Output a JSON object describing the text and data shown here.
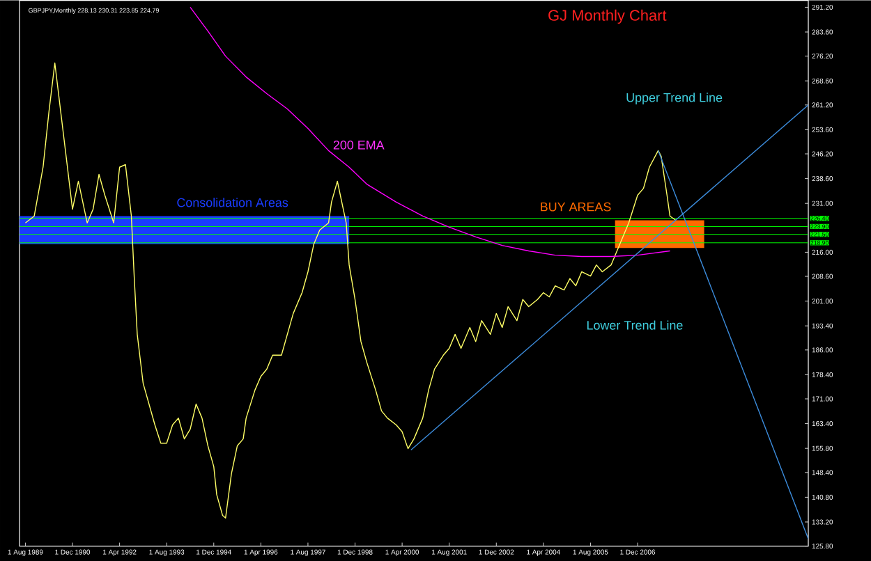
{
  "chart_data": {
    "type": "line",
    "title": "GJ Monthly Chart",
    "annotations": [
      "GBPJPY,Monthly  228.13 230.31 223.85 224.79",
      "200 EMA",
      "Upper Trend Line",
      "Lower Trend Line"
    ],
    "bands": [
      {
        "axis": "y",
        "from": 218.5,
        "to": 227.1,
        "label": "Consolidation Areas",
        "color": "#1a3cff"
      },
      {
        "axis": "y",
        "from": 217.3,
        "to": 225.8,
        "label": "BUY AREAS",
        "color": "#ff6a00"
      }
    ],
    "series": [
      {
        "color": "#ffff66",
        "x": [
          "1989-08",
          "1989-11",
          "1990-02",
          "1990-04",
          "1990-06",
          "1990-08",
          "1990-10",
          "1990-12",
          "1991-02",
          "1991-05",
          "1991-07",
          "1991-09",
          "1991-11",
          "1992-02",
          "1992-04",
          "1992-06",
          "1992-08",
          "1992-09",
          "1992-10",
          "1992-12",
          "1993-02",
          "1993-04",
          "1993-06",
          "1993-08",
          "1993-10",
          "1993-12",
          "1994-02",
          "1994-04",
          "1994-06",
          "1994-08",
          "1994-10",
          "1994-12",
          "1995-01",
          "1995-03",
          "1995-04",
          "1995-06",
          "1995-08",
          "1995-10",
          "1995-11",
          "1996-02",
          "1996-04",
          "1996-06",
          "1996-08",
          "1996-11",
          "1997-01",
          "1997-03",
          "1997-06",
          "1997-08",
          "1997-10",
          "1997-12",
          "1998-03",
          "1998-04",
          "1998-06",
          "1998-07",
          "1998-09",
          "1998-10",
          "1998-12",
          "1999-02",
          "1999-04",
          "1999-07",
          "1999-09",
          "1999-11",
          "2000-02",
          "2000-04",
          "2000-06",
          "2000-08",
          "2000-11",
          "2001-01",
          "2001-03",
          "2001-06",
          "2001-08",
          "2001-10",
          "2001-12",
          "2002-03",
          "2002-05",
          "2002-07",
          "2002-10",
          "2002-12",
          "2003-02",
          "2003-04",
          "2003-07",
          "2003-09",
          "2003-11",
          "2004-02",
          "2004-04",
          "2004-06",
          "2004-08",
          "2004-11",
          "2005-01",
          "2005-03",
          "2005-05",
          "2005-08",
          "2005-10",
          "2005-12",
          "2006-03",
          "2006-05",
          "2006-07",
          "2006-09",
          "2006-12",
          "2007-02",
          "2007-04",
          "2007-07",
          "2007-08",
          "2007-10",
          "2007-11",
          "2008-01"
        ],
        "values": [
          225.0,
          227.1,
          242.1,
          259.1,
          274.1,
          259.1,
          244.2,
          229.2,
          237.8,
          225.0,
          229.2,
          239.9,
          233.5,
          225.0,
          242.1,
          242.9,
          227.1,
          207.9,
          190.8,
          175.8,
          169.4,
          163.0,
          157.4,
          157.4,
          163.0,
          165.1,
          158.7,
          161.7,
          169.4,
          165.1,
          156.6,
          150.2,
          141.6,
          135.2,
          134.4,
          148.0,
          156.6,
          158.7,
          165.1,
          173.7,
          177.9,
          180.1,
          184.4,
          184.4,
          190.8,
          197.2,
          203.6,
          210.0,
          218.5,
          222.8,
          225.0,
          231.4,
          237.8,
          233.5,
          225.0,
          212.1,
          201.5,
          188.6,
          182.2,
          173.7,
          167.3,
          165.1,
          163.0,
          160.9,
          155.7,
          158.7,
          165.1,
          173.7,
          180.1,
          184.4,
          186.5,
          190.8,
          186.5,
          192.9,
          188.6,
          195.0,
          190.8,
          197.2,
          192.9,
          199.3,
          195.0,
          201.5,
          199.3,
          201.5,
          203.6,
          202.3,
          205.7,
          204.4,
          207.9,
          205.7,
          210.0,
          208.7,
          212.1,
          210.0,
          212.1,
          216.4,
          220.7,
          225.0,
          233.5,
          235.6,
          242.1,
          247.2,
          245.5,
          233.5,
          227.1,
          225.8
        ]
      },
      {
        "color": "#ff00ff",
        "x": [
          "1994-04",
          "1994-10",
          "1995-04",
          "1995-11",
          "1996-06",
          "1997-01",
          "1997-08",
          "1998-03",
          "1998-10",
          "1999-04",
          "2000-02",
          "2000-11",
          "2001-08",
          "2002-05",
          "2003-02",
          "2003-11",
          "2004-08",
          "2005-05",
          "2006-03",
          "2006-12",
          "2007-11"
        ],
        "values": [
          291.2,
          283.9,
          276.2,
          269.8,
          264.7,
          260.0,
          254.0,
          247.2,
          242.1,
          236.9,
          231.4,
          227.1,
          223.7,
          220.7,
          218.1,
          216.4,
          215.1,
          214.7,
          214.7,
          215.1,
          216.4
        ]
      },
      {
        "color": "#3c8cdc",
        "x": [
          "2000-07",
          "2011-10"
        ],
        "values": [
          155.3,
          261.2
        ]
      },
      {
        "color": "#3c8cdc",
        "x": [
          "2007-07",
          "2011-10"
        ],
        "values": [
          247.2,
          128.0
        ]
      }
    ],
    "ref_lines": [
      {
        "axis": "y",
        "value": 226.4,
        "label": "226.40",
        "color": "#00ff00"
      },
      {
        "axis": "y",
        "value": 223.9,
        "label": "223.90",
        "color": "#00ff00"
      },
      {
        "axis": "y",
        "value": 221.5,
        "label": "221.50",
        "color": "#00ff00"
      },
      {
        "axis": "y",
        "value": 218.9,
        "label": "218.90",
        "color": "#00ff00"
      }
    ],
    "xlim": [
      "1989-06",
      "2011-10"
    ],
    "xticks": [
      {
        "value": "1989-08-01",
        "label": "1 Aug 1989"
      },
      {
        "value": "1990-12-01",
        "label": "1 Dec 1990"
      },
      {
        "value": "1992-04-01",
        "label": "1 Apr 1992"
      },
      {
        "value": "1993-08-01",
        "label": "1 Aug 1993"
      },
      {
        "value": "1994-12-01",
        "label": "1 Dec 1994"
      },
      {
        "value": "1996-04-01",
        "label": "1 Apr 1996"
      },
      {
        "value": "1997-08-01",
        "label": "1 Aug 1997"
      },
      {
        "value": "1998-12-01",
        "label": "1 Dec 1998"
      },
      {
        "value": "2000-04-01",
        "label": "1 Apr 2000"
      },
      {
        "value": "2001-08-01",
        "label": "1 Aug 2001"
      },
      {
        "value": "2002-12-01",
        "label": "1 Dec 2002"
      },
      {
        "value": "2004-04-01",
        "label": "1 Apr 2004"
      },
      {
        "value": "2005-08-01",
        "label": "1 Aug 2005"
      },
      {
        "value": "2006-12-01",
        "label": "1 Dec 2006"
      }
    ],
    "ylim": [
      125.8,
      293.3
    ],
    "yticks": [
      {
        "value": 291.2,
        "label": "291.20"
      },
      {
        "value": 283.6,
        "label": "283.60"
      },
      {
        "value": 276.2,
        "label": "276.20"
      },
      {
        "value": 268.6,
        "label": "268.60"
      },
      {
        "value": 261.2,
        "label": "261.20"
      },
      {
        "value": 253.6,
        "label": "253.60"
      },
      {
        "value": 246.2,
        "label": "246.20"
      },
      {
        "value": 238.6,
        "label": "238.60"
      },
      {
        "value": 231.0,
        "label": "231.00"
      },
      {
        "value": 216.0,
        "label": "216.00"
      },
      {
        "value": 208.6,
        "label": "208.60"
      },
      {
        "value": 201.0,
        "label": "201.00"
      },
      {
        "value": 193.4,
        "label": "193.40"
      },
      {
        "value": 186.0,
        "label": "186.00"
      },
      {
        "value": 178.4,
        "label": "178.40"
      },
      {
        "value": 171.0,
        "label": "171.00"
      },
      {
        "value": 163.4,
        "label": "163.40"
      },
      {
        "value": 155.8,
        "label": "155.80"
      },
      {
        "value": 148.4,
        "label": "148.40"
      },
      {
        "value": 140.8,
        "label": "140.80"
      },
      {
        "value": 133.2,
        "label": "133.20"
      },
      {
        "value": 125.8,
        "label": "125.80"
      }
    ],
    "grid": false
  }
}
